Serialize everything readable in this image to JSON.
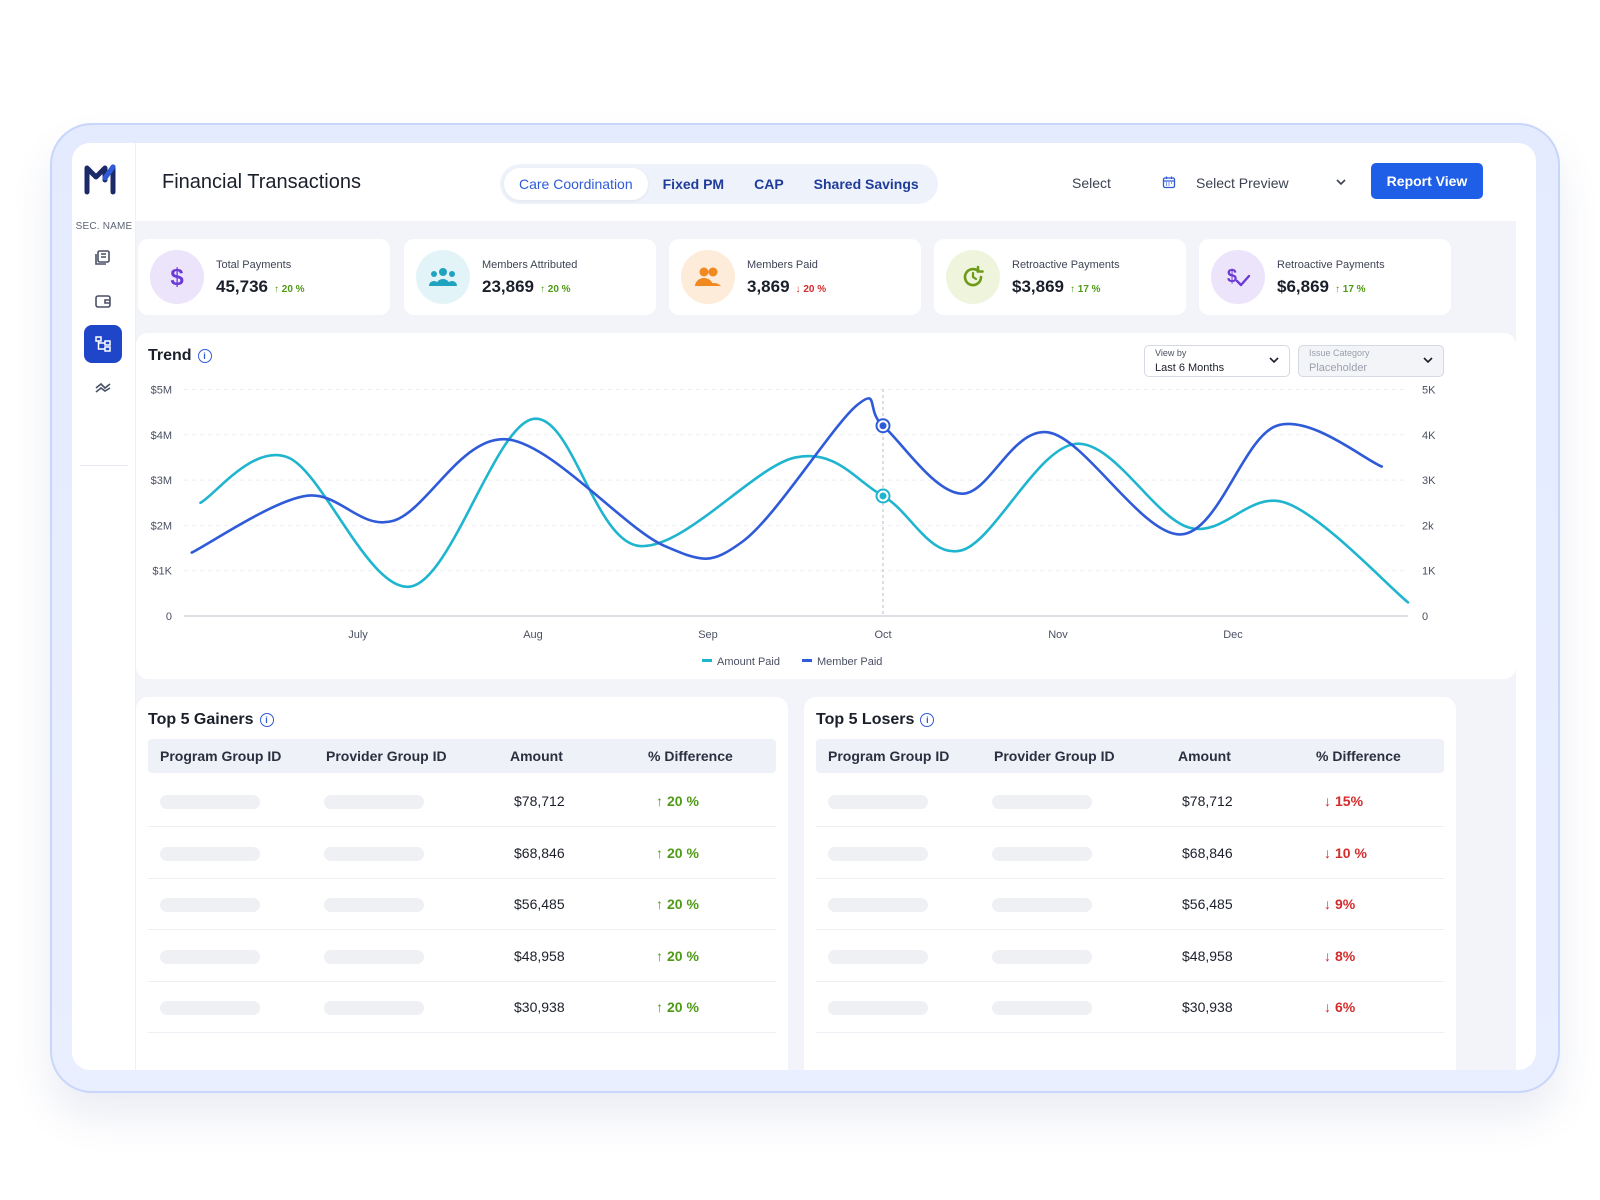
{
  "sidebar": {
    "section_name": "SEC. NAME",
    "items": [
      {
        "icon": "report-book-icon"
      },
      {
        "icon": "wallet-icon"
      },
      {
        "icon": "hierarchy-icon",
        "active": true
      },
      {
        "icon": "trend-arrows-icon"
      }
    ]
  },
  "header": {
    "title": "Financial Transactions",
    "tabs": [
      {
        "label": "Care Coordination",
        "active": true
      },
      {
        "label": "Fixed PM"
      },
      {
        "label": "CAP"
      },
      {
        "label": "Shared Savings"
      }
    ],
    "date_select": "Select",
    "preview_select": "Select Preview",
    "report_button": "Report View"
  },
  "kpis": [
    {
      "label": "Total Payments",
      "value": "45,736",
      "delta": "20 %",
      "direction": "up",
      "icon": "dollar-icon",
      "bg": "#ece4fb",
      "color": "#6b3bd4"
    },
    {
      "label": "Members Attributed",
      "value": "23,869",
      "delta": "20 %",
      "direction": "up",
      "icon": "group-icon",
      "bg": "#e3f4f8",
      "color": "#1fa3c0"
    },
    {
      "label": "Members Paid",
      "value": "3,869",
      "delta": "20 %",
      "direction": "down",
      "icon": "users-icon",
      "bg": "#fdecd9",
      "color": "#f0891f"
    },
    {
      "label": "Retroactive Payments",
      "value": "$3,869",
      "delta": "17 %",
      "direction": "up",
      "icon": "refresh-clock-icon",
      "bg": "#eef5dc",
      "color": "#6d9a18"
    },
    {
      "label": "Retroactive Payments",
      "value": "$6,869",
      "delta": "17 %",
      "direction": "up",
      "icon": "dollar-check-icon",
      "bg": "#ece4fb",
      "color": "#6b3bd4"
    }
  ],
  "trend": {
    "title": "Trend",
    "view_by_label": "View by",
    "view_by_value": "Last 6 Months",
    "issue_label": "Issue Category",
    "issue_value": "Placeholder"
  },
  "chart_data": {
    "type": "line",
    "x": [
      "July",
      "Aug",
      "Sep",
      "Oct",
      "Nov",
      "Dec"
    ],
    "y_left_ticks": [
      "0",
      "$1K",
      "$2M",
      "$3M",
      "$4M",
      "$5M"
    ],
    "y_right_ticks": [
      "0",
      "1K",
      "2k",
      "3K",
      "4K",
      "5K"
    ],
    "ylim": [
      0,
      5
    ],
    "colors": {
      "amount_paid": "#1fb5cf",
      "member_paid": "#2f5ad8"
    },
    "legend_position": "bottom",
    "highlight_x": "Oct",
    "series": [
      {
        "name": "Amount Paid",
        "points": [
          [
            -0.9,
            2.5
          ],
          [
            -0.4,
            3.5
          ],
          [
            0.3,
            0.65
          ],
          [
            1.0,
            4.35
          ],
          [
            1.6,
            1.55
          ],
          [
            2.5,
            3.5
          ],
          [
            3.0,
            2.65
          ],
          [
            3.45,
            1.45
          ],
          [
            4.1,
            3.8
          ],
          [
            4.75,
            1.95
          ],
          [
            5.3,
            2.5
          ],
          [
            6.0,
            0.3
          ]
        ]
      },
      {
        "name": "Member Paid",
        "points": [
          [
            -0.95,
            1.4
          ],
          [
            -0.3,
            2.65
          ],
          [
            0.2,
            2.1
          ],
          [
            0.85,
            3.9
          ],
          [
            1.75,
            1.55
          ],
          [
            2.2,
            1.65
          ],
          [
            2.85,
            4.65
          ],
          [
            3.0,
            4.2
          ],
          [
            3.45,
            2.7
          ],
          [
            3.95,
            4.05
          ],
          [
            4.7,
            1.8
          ],
          [
            5.25,
            4.2
          ],
          [
            5.85,
            3.3
          ]
        ]
      }
    ]
  },
  "gainers": {
    "title": "Top 5 Gainers",
    "columns": [
      "Program Group ID",
      "Provider Group ID",
      "Amount",
      "% Difference"
    ],
    "rows": [
      {
        "amount": "$78,712",
        "pct": "20 %"
      },
      {
        "amount": "$68,846",
        "pct": "20 %"
      },
      {
        "amount": "$56,485",
        "pct": "20 %"
      },
      {
        "amount": "$48,958",
        "pct": "20 %"
      },
      {
        "amount": "$30,938",
        "pct": "20 %"
      }
    ]
  },
  "losers": {
    "title": "Top 5 Losers",
    "columns": [
      "Program Group ID",
      "Provider Group ID",
      "Amount",
      "% Difference"
    ],
    "rows": [
      {
        "amount": "$78,712",
        "pct": "15%"
      },
      {
        "amount": "$68,846",
        "pct": "10 %"
      },
      {
        "amount": "$56,485",
        "pct": "9%"
      },
      {
        "amount": "$48,958",
        "pct": "8%"
      },
      {
        "amount": "$30,938",
        "pct": "6%"
      }
    ]
  }
}
